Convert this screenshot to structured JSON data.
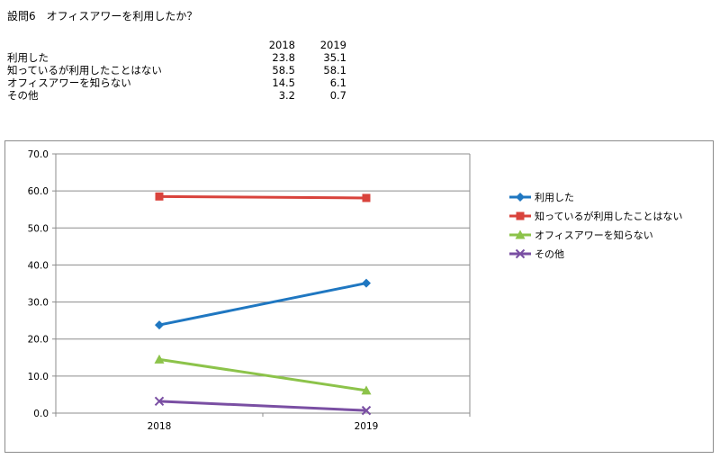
{
  "question_title": "設問6　オフィスアワーを利用したか？",
  "table": {
    "headers": [
      "2018",
      "2019"
    ],
    "rows": [
      {
        "label": "利用した",
        "values": [
          "23.8",
          "35.1"
        ]
      },
      {
        "label": "知っているが利用したことはない",
        "values": [
          "58.5",
          "58.1"
        ]
      },
      {
        "label": "オフィスアワーを知らない",
        "values": [
          "14.5",
          "6.1"
        ]
      },
      {
        "label": "その他",
        "values": [
          "3.2",
          "0.7"
        ]
      }
    ]
  },
  "chart_data": {
    "type": "line",
    "x": [
      "2018",
      "2019"
    ],
    "series": [
      {
        "name": "利用した",
        "values": [
          23.8,
          35.1
        ],
        "color": "#1f77c1",
        "marker": "diamond"
      },
      {
        "name": "知っているが利用したことはない",
        "values": [
          58.5,
          58.1
        ],
        "color": "#d9433c",
        "marker": "square"
      },
      {
        "name": "オフィスアワーを知らない",
        "values": [
          14.5,
          6.1
        ],
        "color": "#8cc34a",
        "marker": "triangle"
      },
      {
        "name": "その他",
        "values": [
          3.2,
          0.7
        ],
        "color": "#7a4fa3",
        "marker": "x"
      }
    ],
    "ylim": [
      0,
      70
    ],
    "yticks": [
      0,
      10,
      20,
      30,
      40,
      50,
      60,
      70
    ],
    "ytick_labels": [
      "0.0",
      "10.0",
      "20.0",
      "30.0",
      "40.0",
      "50.0",
      "60.0",
      "70.0"
    ],
    "grid": true,
    "legend_position": "right",
    "gridline_color": "#8c8c8c"
  }
}
